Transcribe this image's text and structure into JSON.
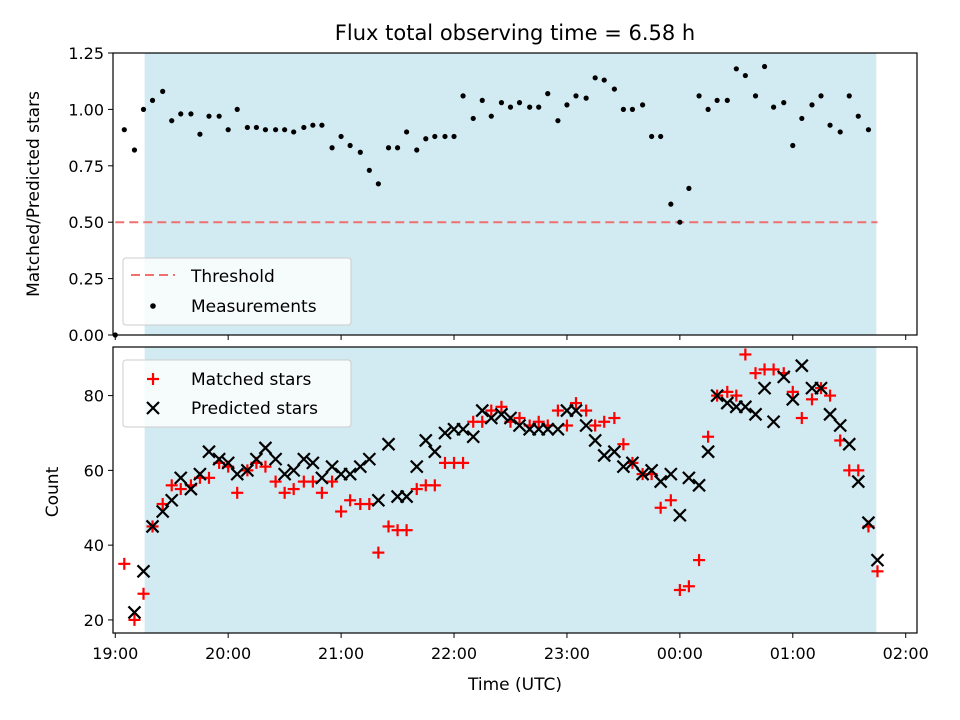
{
  "title": "Flux total observing time = 6.58 h",
  "colors": {
    "shade": "#add8e6",
    "threshold": "#f07070",
    "measurement": "#000000",
    "matched": "#ff0000",
    "predicted": "#000000"
  },
  "chart_data": [
    {
      "type": "scatter",
      "ylabel": "Matched/Predicted stars",
      "ylim": [
        0,
        1.25
      ],
      "yticks": [
        0,
        0.25,
        0.5,
        0.75,
        1.0,
        1.25
      ],
      "ytick_labels": [
        "0.00",
        "0.25",
        "0.50",
        "0.75",
        "1.00",
        "1.25"
      ],
      "xlim_hours": [
        18.98,
        26.1
      ],
      "shaded_span_hours": [
        19.26,
        25.74
      ],
      "legend": {
        "position": "lower-left",
        "entries": [
          {
            "label": "Threshold",
            "style": "dashed-line"
          },
          {
            "label": "Measurements",
            "style": "dot"
          }
        ]
      },
      "threshold": {
        "name": "Threshold",
        "y": 0.5,
        "x_hours": [
          19.0,
          25.75
        ]
      },
      "series": [
        {
          "name": "Measurements",
          "points": [
            [
              19.0,
              0.0
            ],
            [
              19.08,
              0.91
            ],
            [
              19.17,
              0.82
            ],
            [
              19.25,
              1.0
            ],
            [
              19.33,
              1.04
            ],
            [
              19.42,
              1.08
            ],
            [
              19.5,
              0.95
            ],
            [
              19.58,
              0.98
            ],
            [
              19.67,
              0.98
            ],
            [
              19.75,
              0.89
            ],
            [
              19.83,
              0.97
            ],
            [
              19.92,
              0.97
            ],
            [
              20.0,
              0.91
            ],
            [
              20.08,
              1.0
            ],
            [
              20.17,
              0.92
            ],
            [
              20.25,
              0.92
            ],
            [
              20.33,
              0.91
            ],
            [
              20.42,
              0.91
            ],
            [
              20.5,
              0.91
            ],
            [
              20.58,
              0.9
            ],
            [
              20.67,
              0.92
            ],
            [
              20.75,
              0.93
            ],
            [
              20.83,
              0.93
            ],
            [
              20.92,
              0.83
            ],
            [
              21.0,
              0.88
            ],
            [
              21.08,
              0.84
            ],
            [
              21.17,
              0.81
            ],
            [
              21.25,
              0.73
            ],
            [
              21.33,
              0.67
            ],
            [
              21.42,
              0.83
            ],
            [
              21.5,
              0.83
            ],
            [
              21.58,
              0.9
            ],
            [
              21.67,
              0.82
            ],
            [
              21.75,
              0.87
            ],
            [
              21.83,
              0.88
            ],
            [
              21.92,
              0.88
            ],
            [
              22.0,
              0.88
            ],
            [
              22.08,
              1.06
            ],
            [
              22.17,
              0.96
            ],
            [
              22.25,
              1.04
            ],
            [
              22.33,
              0.97
            ],
            [
              22.42,
              1.03
            ],
            [
              22.5,
              1.01
            ],
            [
              22.58,
              1.03
            ],
            [
              22.67,
              1.01
            ],
            [
              22.75,
              1.01
            ],
            [
              22.83,
              1.07
            ],
            [
              22.92,
              0.95
            ],
            [
              23.0,
              1.02
            ],
            [
              23.08,
              1.06
            ],
            [
              23.17,
              1.05
            ],
            [
              23.25,
              1.14
            ],
            [
              23.33,
              1.13
            ],
            [
              23.42,
              1.09
            ],
            [
              23.5,
              1.0
            ],
            [
              23.58,
              1.0
            ],
            [
              23.67,
              1.02
            ],
            [
              23.75,
              0.88
            ],
            [
              23.83,
              0.88
            ],
            [
              23.92,
              0.58
            ],
            [
              24.0,
              0.5
            ],
            [
              24.08,
              0.65
            ],
            [
              24.17,
              1.06
            ],
            [
              24.25,
              1.0
            ],
            [
              24.33,
              1.04
            ],
            [
              24.42,
              1.04
            ],
            [
              24.5,
              1.18
            ],
            [
              24.58,
              1.15
            ],
            [
              24.67,
              1.06
            ],
            [
              24.75,
              1.19
            ],
            [
              24.83,
              1.01
            ],
            [
              24.92,
              1.03
            ],
            [
              25.0,
              0.84
            ],
            [
              25.08,
              0.96
            ],
            [
              25.17,
              1.02
            ],
            [
              25.25,
              1.06
            ],
            [
              25.33,
              0.93
            ],
            [
              25.42,
              0.9
            ],
            [
              25.5,
              1.06
            ],
            [
              25.58,
              0.97
            ],
            [
              25.67,
              0.91
            ]
          ]
        }
      ]
    },
    {
      "type": "scatter",
      "xlabel": "Time (UTC)",
      "ylabel": "Count",
      "ylim": [
        16.5,
        93
      ],
      "yticks": [
        20,
        40,
        60,
        80
      ],
      "ytick_labels": [
        "20",
        "40",
        "60",
        "80"
      ],
      "xlim_hours": [
        18.98,
        26.1
      ],
      "xticks_hours": [
        19,
        20,
        21,
        22,
        23,
        24,
        25,
        26
      ],
      "xtick_labels": [
        "19:00",
        "20:00",
        "21:00",
        "22:00",
        "23:00",
        "00:00",
        "01:00",
        "02:00"
      ],
      "shaded_span_hours": [
        19.26,
        25.74
      ],
      "legend": {
        "position": "upper-left",
        "entries": [
          {
            "label": "Matched stars",
            "style": "plus"
          },
          {
            "label": "Predicted stars",
            "style": "cross"
          }
        ]
      },
      "series": [
        {
          "name": "Matched stars",
          "points": [
            [
              19.08,
              35
            ],
            [
              19.17,
              20
            ],
            [
              19.25,
              27
            ],
            [
              19.33,
              45
            ],
            [
              19.42,
              51
            ],
            [
              19.5,
              56
            ],
            [
              19.58,
              55
            ],
            [
              19.67,
              56
            ],
            [
              19.75,
              58
            ],
            [
              19.83,
              58
            ],
            [
              19.92,
              62
            ],
            [
              20.0,
              61
            ],
            [
              20.08,
              54
            ],
            [
              20.17,
              60
            ],
            [
              20.25,
              62
            ],
            [
              20.33,
              61
            ],
            [
              20.42,
              57
            ],
            [
              20.5,
              54
            ],
            [
              20.58,
              55
            ],
            [
              20.67,
              57
            ],
            [
              20.75,
              57
            ],
            [
              20.83,
              54
            ],
            [
              20.92,
              57
            ],
            [
              21.0,
              49
            ],
            [
              21.08,
              52
            ],
            [
              21.17,
              51
            ],
            [
              21.25,
              51
            ],
            [
              21.33,
              38
            ],
            [
              21.42,
              45
            ],
            [
              21.5,
              44
            ],
            [
              21.58,
              44
            ],
            [
              21.67,
              55
            ],
            [
              21.75,
              56
            ],
            [
              21.83,
              56
            ],
            [
              21.92,
              62
            ],
            [
              22.0,
              62
            ],
            [
              22.08,
              62
            ],
            [
              22.17,
              73
            ],
            [
              22.25,
              73
            ],
            [
              22.33,
              76
            ],
            [
              22.42,
              77
            ],
            [
              22.5,
              73
            ],
            [
              22.58,
              74
            ],
            [
              22.67,
              72
            ],
            [
              22.75,
              73
            ],
            [
              22.83,
              72
            ],
            [
              22.92,
              76
            ],
            [
              23.0,
              72
            ],
            [
              23.08,
              78
            ],
            [
              23.17,
              76
            ],
            [
              23.25,
              72
            ],
            [
              23.33,
              73
            ],
            [
              23.42,
              74
            ],
            [
              23.5,
              67
            ],
            [
              23.58,
              62
            ],
            [
              23.67,
              59
            ],
            [
              23.75,
              59
            ],
            [
              23.83,
              50
            ],
            [
              23.92,
              52
            ],
            [
              24.0,
              28
            ],
            [
              24.08,
              29
            ],
            [
              24.17,
              36
            ],
            [
              24.25,
              69
            ],
            [
              24.33,
              80
            ],
            [
              24.42,
              81
            ],
            [
              24.5,
              80
            ],
            [
              24.58,
              91
            ],
            [
              24.67,
              86
            ],
            [
              24.75,
              87
            ],
            [
              24.83,
              87
            ],
            [
              24.92,
              86
            ],
            [
              25.0,
              81
            ],
            [
              25.08,
              74
            ],
            [
              25.17,
              79
            ],
            [
              25.25,
              82
            ],
            [
              25.33,
              80
            ],
            [
              25.42,
              68
            ],
            [
              25.5,
              60
            ],
            [
              25.58,
              60
            ],
            [
              25.67,
              45
            ],
            [
              25.75,
              33
            ]
          ]
        },
        {
          "name": "Predicted stars",
          "points": [
            [
              19.17,
              22
            ],
            [
              19.25,
              33
            ],
            [
              19.33,
              45
            ],
            [
              19.42,
              49
            ],
            [
              19.5,
              52
            ],
            [
              19.58,
              58
            ],
            [
              19.67,
              55
            ],
            [
              19.75,
              59
            ],
            [
              19.83,
              65
            ],
            [
              19.92,
              63
            ],
            [
              20.0,
              62
            ],
            [
              20.08,
              59
            ],
            [
              20.17,
              60
            ],
            [
              20.25,
              63
            ],
            [
              20.33,
              66
            ],
            [
              20.42,
              63
            ],
            [
              20.5,
              59
            ],
            [
              20.58,
              60
            ],
            [
              20.67,
              63
            ],
            [
              20.75,
              62
            ],
            [
              20.83,
              58
            ],
            [
              20.92,
              61
            ],
            [
              21.0,
              59
            ],
            [
              21.08,
              59
            ],
            [
              21.17,
              61
            ],
            [
              21.25,
              63
            ],
            [
              21.33,
              52
            ],
            [
              21.42,
              67
            ],
            [
              21.5,
              53
            ],
            [
              21.58,
              53
            ],
            [
              21.67,
              61
            ],
            [
              21.75,
              68
            ],
            [
              21.83,
              65
            ],
            [
              21.92,
              70
            ],
            [
              22.0,
              71
            ],
            [
              22.08,
              71
            ],
            [
              22.17,
              69
            ],
            [
              22.25,
              76
            ],
            [
              22.33,
              74
            ],
            [
              22.42,
              75
            ],
            [
              22.5,
              74
            ],
            [
              22.58,
              72
            ],
            [
              22.67,
              71
            ],
            [
              22.75,
              71
            ],
            [
              22.83,
              71
            ],
            [
              22.92,
              71
            ],
            [
              23.0,
              76
            ],
            [
              23.08,
              76
            ],
            [
              23.17,
              72
            ],
            [
              23.25,
              68
            ],
            [
              23.33,
              64
            ],
            [
              23.42,
              65
            ],
            [
              23.5,
              61
            ],
            [
              23.58,
              62
            ],
            [
              23.67,
              59
            ],
            [
              23.75,
              60
            ],
            [
              23.83,
              57
            ],
            [
              23.92,
              59
            ],
            [
              24.0,
              48
            ],
            [
              24.08,
              58
            ],
            [
              24.17,
              56
            ],
            [
              24.25,
              65
            ],
            [
              24.33,
              80
            ],
            [
              24.42,
              78
            ],
            [
              24.5,
              77
            ],
            [
              24.58,
              77
            ],
            [
              24.67,
              75
            ],
            [
              24.75,
              82
            ],
            [
              24.83,
              73
            ],
            [
              24.92,
              85
            ],
            [
              25.0,
              79
            ],
            [
              25.08,
              88
            ],
            [
              25.17,
              82
            ],
            [
              25.25,
              82
            ],
            [
              25.33,
              75
            ],
            [
              25.42,
              72
            ],
            [
              25.5,
              67
            ],
            [
              25.58,
              57
            ],
            [
              25.67,
              46
            ],
            [
              25.75,
              36
            ]
          ]
        }
      ]
    }
  ]
}
